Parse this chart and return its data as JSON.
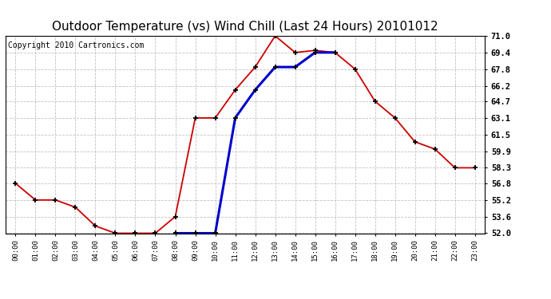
{
  "title": "Outdoor Temperature (vs) Wind Chill (Last 24 Hours) 20101012",
  "copyright": "Copyright 2010 Cartronics.com",
  "x_labels": [
    "00:00",
    "01:00",
    "02:00",
    "03:00",
    "04:00",
    "05:00",
    "06:00",
    "07:00",
    "08:00",
    "09:00",
    "10:00",
    "11:00",
    "12:00",
    "13:00",
    "14:00",
    "15:00",
    "16:00",
    "17:00",
    "18:00",
    "19:00",
    "20:00",
    "21:00",
    "22:00",
    "23:00"
  ],
  "temp_red": [
    56.8,
    55.2,
    55.2,
    54.5,
    52.7,
    52.0,
    52.0,
    52.0,
    53.6,
    63.1,
    63.1,
    65.8,
    68.0,
    71.0,
    69.4,
    69.6,
    69.4,
    67.8,
    64.7,
    63.1,
    60.8,
    60.1,
    58.3,
    58.3
  ],
  "wind_blue": [
    null,
    null,
    null,
    null,
    null,
    null,
    null,
    null,
    52.0,
    52.0,
    52.0,
    63.1,
    65.8,
    68.0,
    68.0,
    69.4,
    69.4,
    null,
    null,
    null,
    null,
    null,
    null,
    null
  ],
  "ylim_min": 52.0,
  "ylim_max": 71.0,
  "yticks": [
    52.0,
    53.6,
    55.2,
    56.8,
    58.3,
    59.9,
    61.5,
    63.1,
    64.7,
    66.2,
    67.8,
    69.4,
    71.0
  ],
  "red_color": "#cc0000",
  "blue_color": "#0000cc",
  "grid_color": "#bbbbbb",
  "bg_color": "#ffffff",
  "title_fontsize": 11,
  "copyright_fontsize": 7
}
